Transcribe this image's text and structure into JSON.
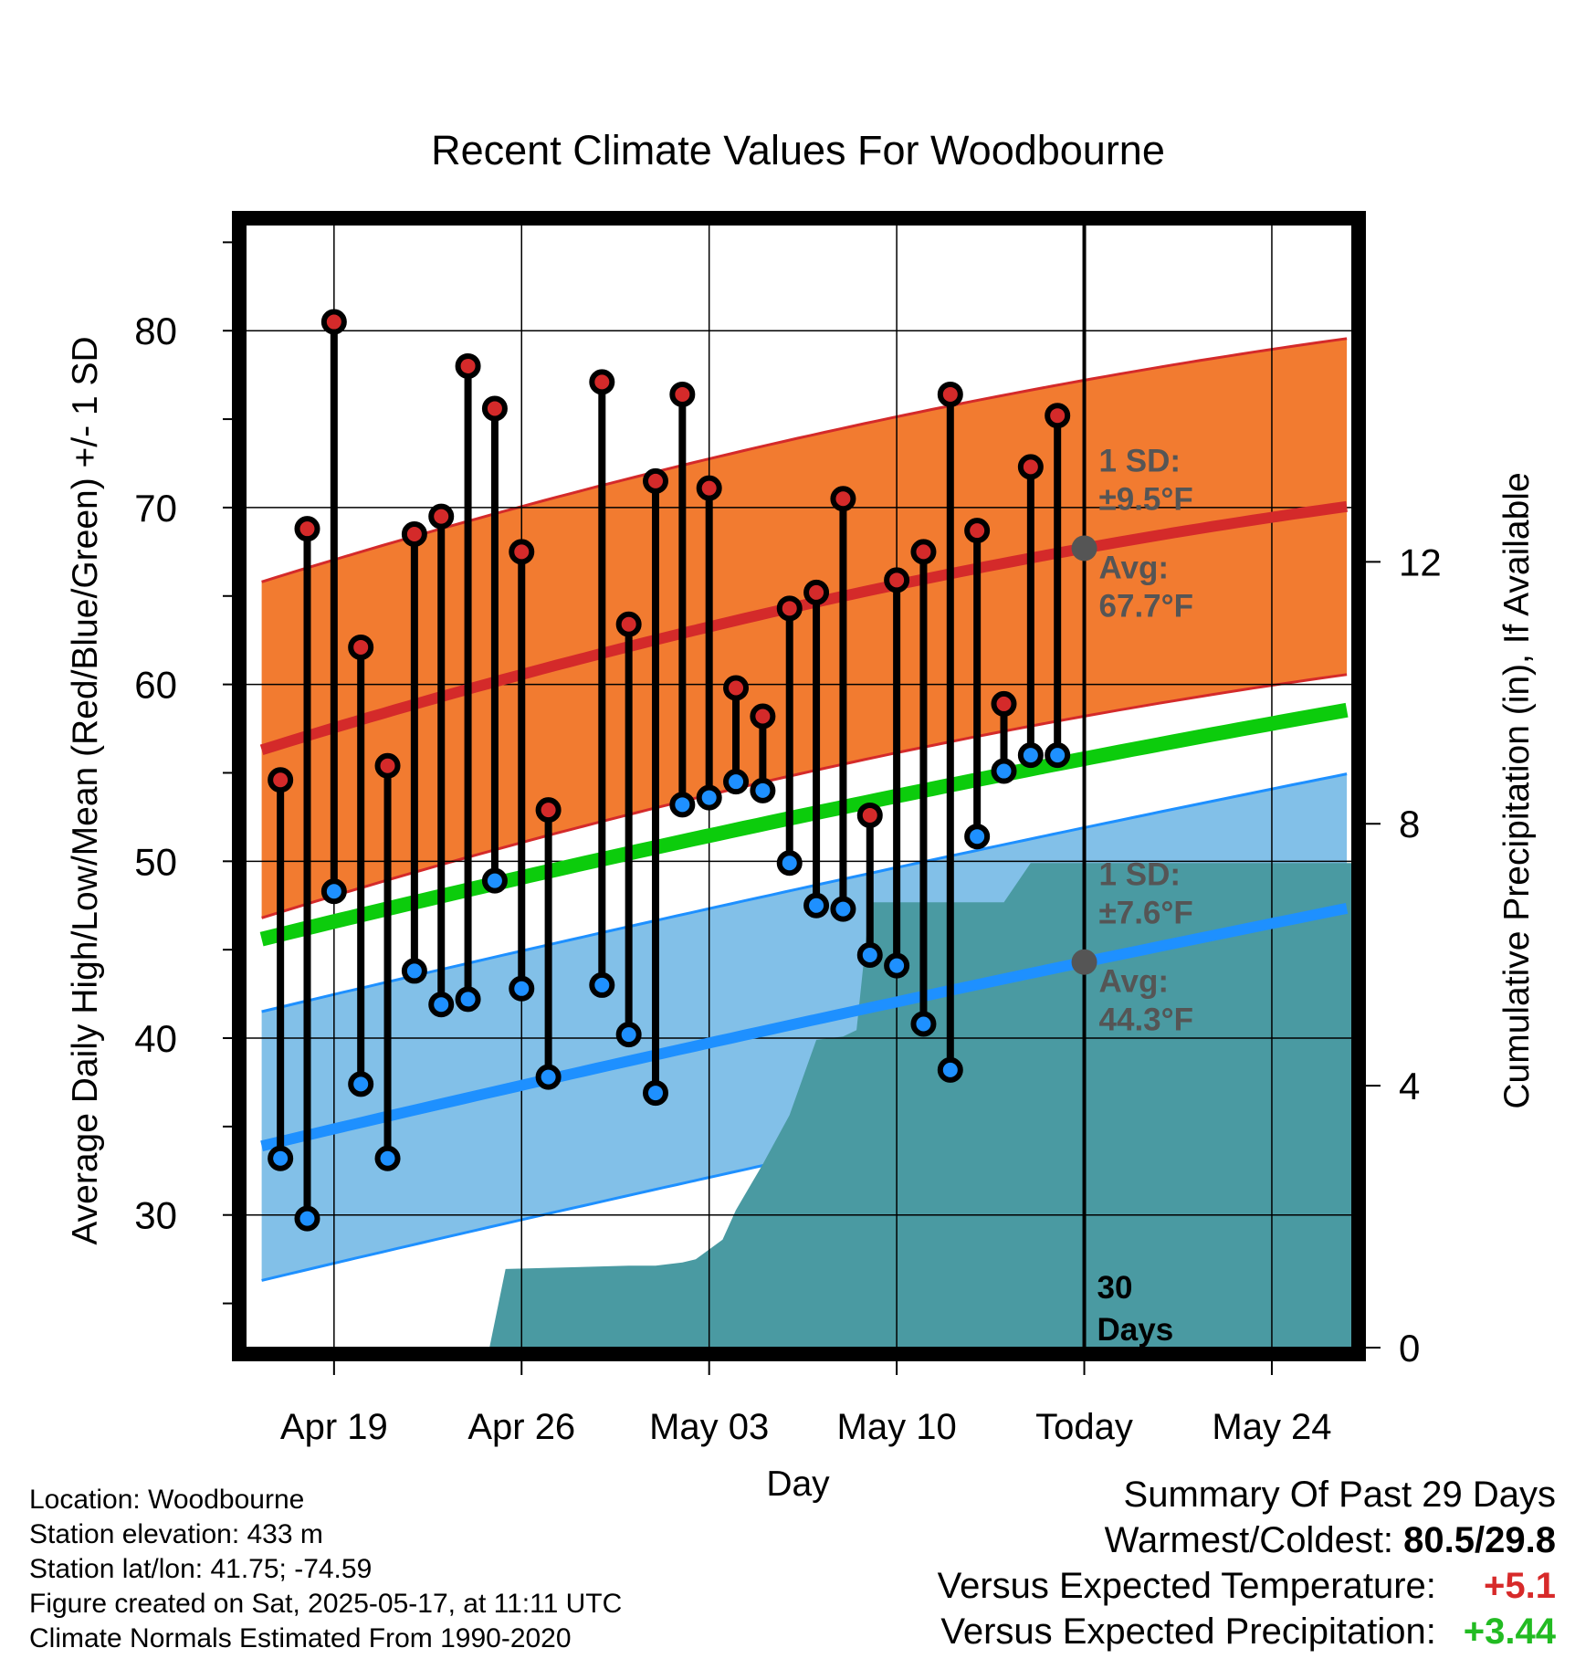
{
  "chart_data": {
    "type": "line",
    "title": "Recent Climate Values For Woodbourne",
    "xlabel": "Day",
    "ylabel": "Average Daily High/Low/Mean (Red/Blue/Green) +/- 1 SD",
    "y2label": "Cumulative Precipitation (in), If Available",
    "ylim": [
      22.5,
      86
    ],
    "y2lim": [
      0,
      17.15
    ],
    "yticks": [
      30,
      40,
      50,
      60,
      70,
      80
    ],
    "ytick_labels": [
      "30",
      "40",
      "50",
      "60",
      "70",
      "80"
    ],
    "y2ticks": [
      0,
      4,
      8,
      12
    ],
    "y2tick_labels": [
      "0",
      "4",
      "8",
      "12"
    ],
    "xlim": [
      -3.3,
      38
    ],
    "xticks": [
      0,
      7,
      14,
      21,
      28,
      35
    ],
    "xtick_labels": [
      "Apr 19",
      "Apr 26",
      "May 03",
      "May 10",
      "Today",
      "May 24"
    ],
    "today_x": 28,
    "today_label": [
      "30",
      "Days"
    ],
    "days": [
      -2,
      -1,
      0,
      1,
      2,
      3,
      4,
      5,
      6,
      7,
      8,
      10,
      11,
      12,
      13,
      14,
      15,
      16,
      17,
      18,
      19,
      20,
      21,
      22,
      23,
      24,
      25,
      26,
      27
    ],
    "highs": [
      54.6,
      68.8,
      80.5,
      62.1,
      55.4,
      68.5,
      69.5,
      78.0,
      75.6,
      67.5,
      52.9,
      77.1,
      63.4,
      71.5,
      76.4,
      71.1,
      59.8,
      58.2,
      64.3,
      65.2,
      70.5,
      52.6,
      65.9,
      67.5,
      76.4,
      68.7,
      58.9,
      72.3,
      75.2
    ],
    "lows": [
      33.2,
      29.8,
      48.3,
      37.4,
      33.2,
      43.8,
      41.9,
      42.2,
      48.9,
      42.8,
      37.8,
      43.0,
      40.2,
      36.9,
      53.2,
      53.6,
      54.5,
      54.0,
      49.9,
      47.5,
      47.3,
      44.7,
      44.1,
      40.8,
      38.2,
      51.4,
      55.1,
      56.0,
      56.0
    ],
    "normals": {
      "x": [
        -2.7,
        28,
        38
      ],
      "high_avg": [
        56.3,
        67.7,
        70.1
      ],
      "high_sd": 9.5,
      "low_avg": [
        33.9,
        44.3,
        47.4
      ],
      "low_sd": 7.6,
      "mean_avg": [
        45.6,
        55.8,
        58.6
      ]
    },
    "normal_labels": {
      "high_sd": [
        "1 SD:",
        "±9.5°F"
      ],
      "high_avg": [
        "Avg:",
        "67.7°F"
      ],
      "low_sd": [
        "1 SD:",
        "±7.6°F"
      ],
      "low_avg": [
        "Avg:",
        "44.3°F"
      ]
    },
    "precip": {
      "x": [
        -2.7,
        5.8,
        6.4,
        11,
        12,
        13,
        13.5,
        14.5,
        15,
        15.5,
        16,
        17,
        18,
        19,
        19.5,
        20,
        21,
        22,
        23,
        24,
        25,
        26,
        27,
        28,
        38
      ],
      "values": [
        0,
        0,
        1.2,
        1.25,
        1.25,
        1.3,
        1.35,
        1.65,
        2.1,
        2.45,
        2.8,
        3.55,
        4.7,
        4.75,
        4.85,
        6.8,
        6.8,
        6.8,
        6.8,
        6.8,
        6.8,
        7.4,
        7.4,
        7.4,
        7.4
      ]
    },
    "colors": {
      "high": "#d42a2a",
      "high_band": "#f27b30",
      "low": "#1e90ff",
      "low_band": "#82c0e8",
      "mean": "#0ccc0c",
      "precip": "#4a9aa2",
      "marker_text": "#555555"
    }
  },
  "info": {
    "location": "Location: Woodbourne",
    "elevation": "Station elevation: 433 m",
    "latlon": "Station lat/lon: 41.75; -74.59",
    "created": "Figure created on Sat, 2025-05-17, at 11:11 UTC",
    "normals": "Climate Normals Estimated From 1990-2020"
  },
  "summary": {
    "title": "Summary Of Past 29 Days",
    "warm_cold_label": "Warmest/Coldest:",
    "warm_cold_value": "80.5/29.8",
    "temp_label": "Versus Expected Temperature:",
    "temp_value": "+5.1",
    "precip_label": "Versus Expected Precipitation:",
    "precip_value": "+3.44"
  }
}
